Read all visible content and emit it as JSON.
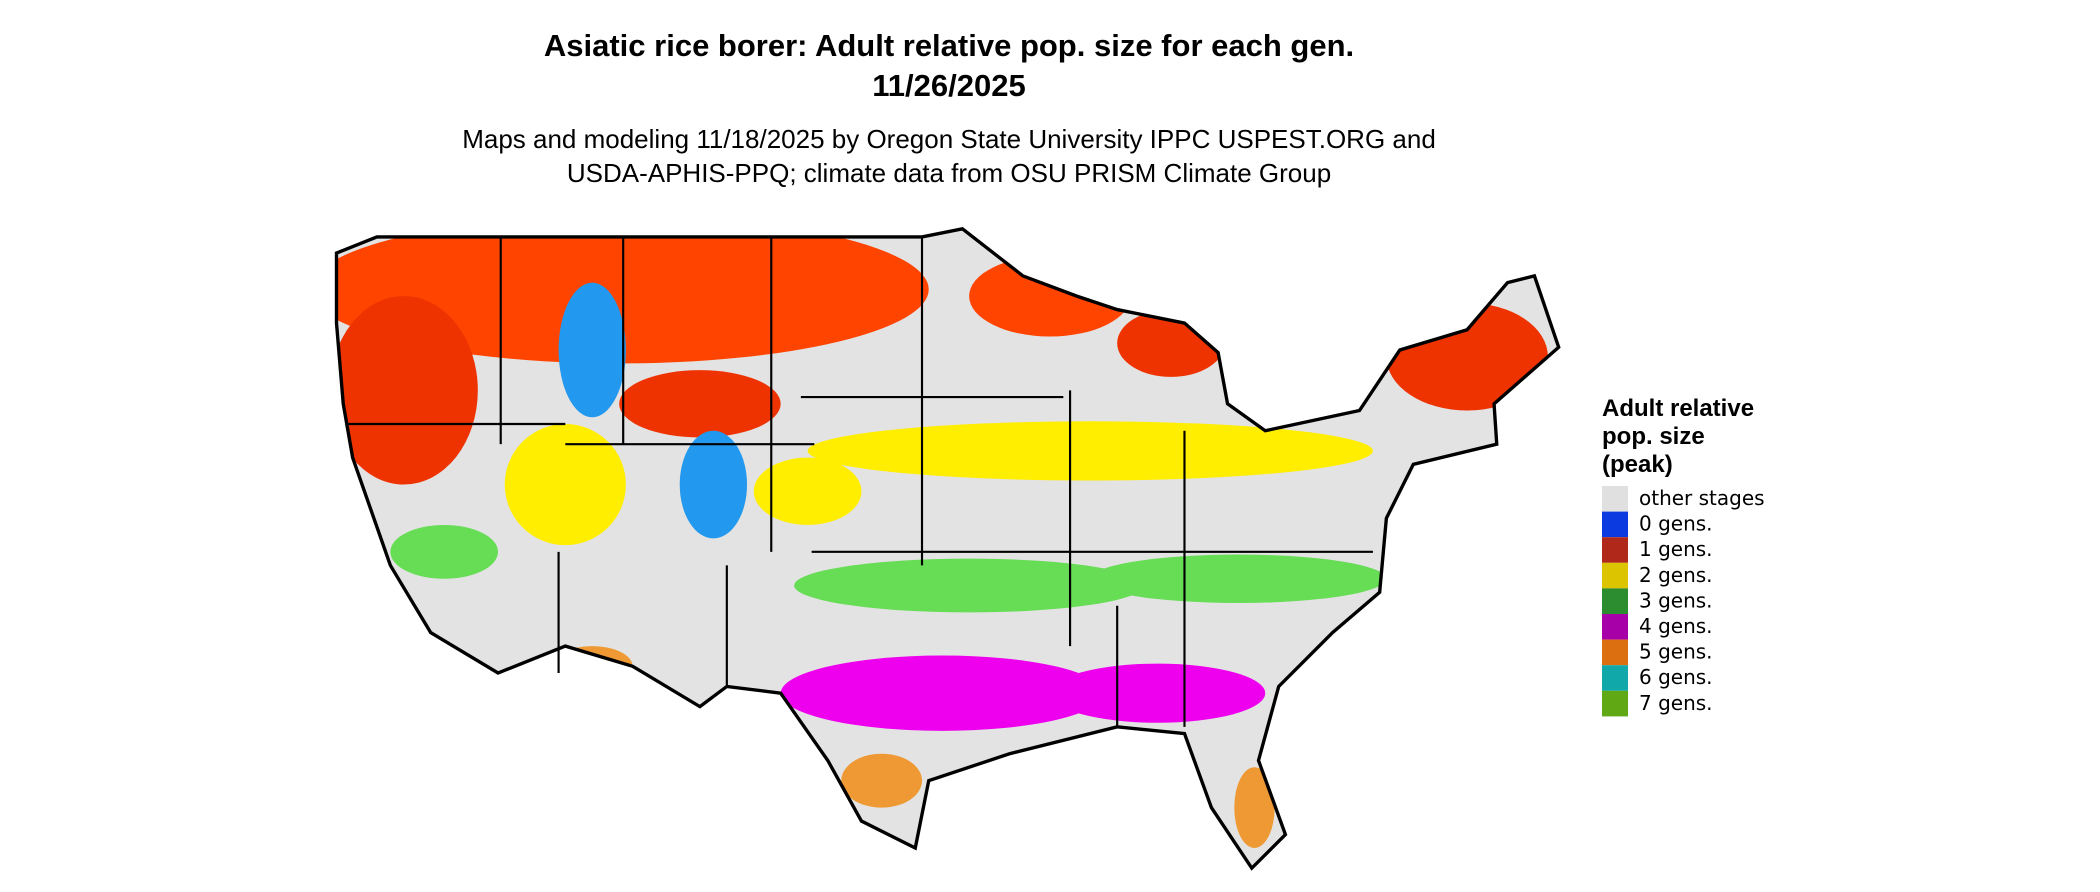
{
  "header": {
    "title_lines": [
      "Asiatic rice borer: Adult relative pop. size for each gen.",
      "11/26/2025"
    ],
    "subtitle_lines": [
      "Maps and modeling 11/18/2025 by Oregon State University IPPC USPEST.ORG and",
      "USDA-APHIS-PPQ; climate data from OSU PRISM Climate Group"
    ]
  },
  "legend": {
    "title_lines": [
      "Adult relative",
      "pop. size",
      "(peak)"
    ],
    "items": [
      {
        "label": "other stages",
        "color": "#e0e0e0"
      },
      {
        "label": "0 gens.",
        "color": "#0a3ae0"
      },
      {
        "label": "1 gens.",
        "color": "#b0281a"
      },
      {
        "label": "2 gens.",
        "color": "#dcc400"
      },
      {
        "label": "3 gens.",
        "color": "#2c8c30"
      },
      {
        "label": "4 gens.",
        "color": "#a800a8"
      },
      {
        "label": "5 gens.",
        "color": "#dc7010"
      },
      {
        "label": "6 gens.",
        "color": "#10a8a8"
      },
      {
        "label": "7 gens.",
        "color": "#60a814"
      }
    ]
  }
}
